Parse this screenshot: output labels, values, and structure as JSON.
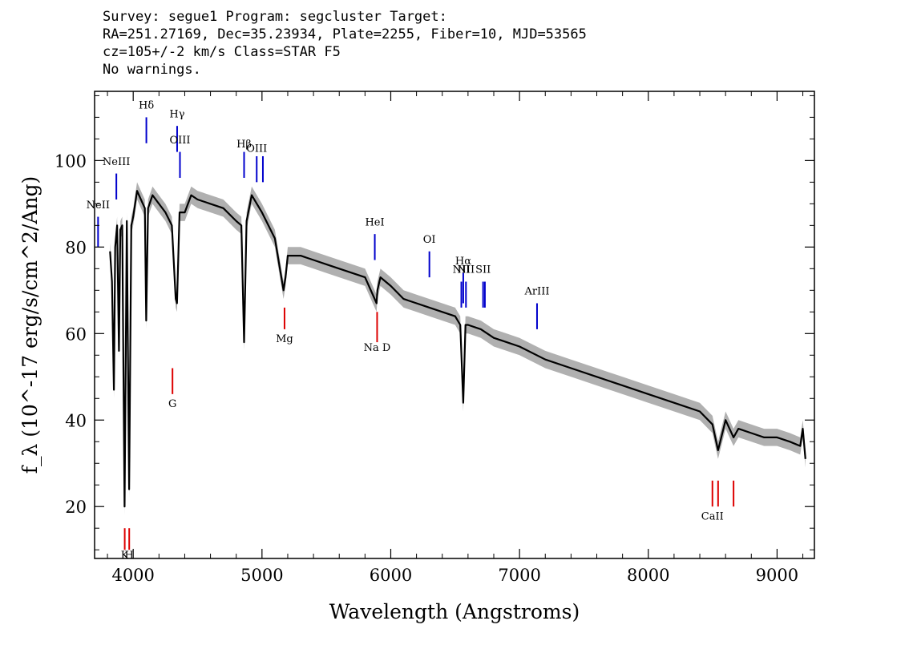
{
  "header": {
    "line1": "Survey: segue1 Program: segcluster Target:",
    "line2": "RA=251.27169, Dec=35.23934, Plate=2255, Fiber=10, MJD=53565",
    "line3": "cz=105+/-2 km/s Class=STAR F5",
    "line4": "No warnings."
  },
  "colors": {
    "emission": "#0000cc",
    "absorption": "#dd0000",
    "flux": "#000000",
    "error": "#b0b0b0"
  },
  "chart_data": {
    "type": "line",
    "xlabel": "Wavelength (Angstroms)",
    "ylabel": "f_λ (10^-17 erg/s/cm^2/Ang)",
    "xlim": [
      3700,
      9290
    ],
    "ylim": [
      8,
      116
    ],
    "xticks": [
      4000,
      5000,
      6000,
      7000,
      8000,
      9000
    ],
    "yticks": [
      20,
      40,
      60,
      80,
      100
    ],
    "series": [
      {
        "x": [
          3820,
          3835,
          3850,
          3860,
          3875,
          3889,
          3900,
          3915,
          3933,
          3950,
          3968,
          3985,
          4000,
          4030,
          4060,
          4090,
          4101,
          4115,
          4150,
          4200,
          4250,
          4300,
          4330,
          4340,
          4360,
          4400,
          4450,
          4500,
          4600,
          4700,
          4800,
          4840,
          4861,
          4880,
          4920,
          5000,
          5100,
          5167,
          5183,
          5200,
          5300,
          5400,
          5500,
          5600,
          5700,
          5800,
          5890,
          5896,
          5920,
          6000,
          6100,
          6200,
          6300,
          6400,
          6500,
          6540,
          6563,
          6580,
          6600,
          6700,
          6800,
          6900,
          7000,
          7200,
          7400,
          7600,
          7800,
          8000,
          8200,
          8400,
          8498,
          8542,
          8600,
          8662,
          8700,
          8800,
          8900,
          9000,
          9100,
          9180,
          9200,
          9220
        ],
        "y": [
          79,
          72,
          47,
          80,
          85,
          56,
          84,
          85,
          20,
          86,
          24,
          85,
          87,
          93,
          91,
          89,
          63,
          89,
          92,
          90,
          88,
          85,
          68,
          67,
          88,
          88,
          92,
          91,
          90,
          89,
          86,
          85,
          58,
          86,
          92,
          88,
          82,
          70,
          73,
          78,
          78,
          77,
          76,
          75,
          74,
          73,
          67,
          70,
          73,
          71,
          68,
          67,
          66,
          65,
          64,
          62,
          44,
          62,
          62,
          61,
          59,
          58,
          57,
          54,
          52,
          50,
          48,
          46,
          44,
          42,
          39,
          33,
          40,
          36,
          38,
          37,
          36,
          36,
          35,
          34,
          38,
          31
        ]
      }
    ],
    "line_markers": [
      {
        "label": "NeII",
        "type": "emission",
        "wavelength": 3727,
        "y_top": 87,
        "y_bottom": 80,
        "label_y": 89
      },
      {
        "label": "NeIII",
        "type": "emission",
        "wavelength": 3869,
        "y_top": 97,
        "y_bottom": 91,
        "label_y": 99
      },
      {
        "label": "Hδ",
        "type": "emission",
        "wavelength": 4102,
        "y_top": 110,
        "y_bottom": 104,
        "label_y": 112
      },
      {
        "label": "Hγ",
        "type": "emission",
        "wavelength": 4341,
        "y_top": 108,
        "y_bottom": 102,
        "label_y": 110
      },
      {
        "label": "OIII",
        "type": "emission",
        "wavelength": 4363,
        "y_top": 102,
        "y_bottom": 96,
        "label_y": 104
      },
      {
        "label": "Hβ",
        "type": "emission",
        "wavelength": 4861,
        "y_top": 102,
        "y_bottom": 96,
        "label_y": 103
      },
      {
        "label": "OIII",
        "type": "emission",
        "wavelength": 4959,
        "y_top": 101,
        "y_bottom": 95,
        "label_y": 102
      },
      {
        "label": "",
        "type": "emission",
        "wavelength": 5007,
        "y_top": 101,
        "y_bottom": 95,
        "label_y": 102
      },
      {
        "label": "HeI",
        "type": "emission",
        "wavelength": 5876,
        "y_top": 83,
        "y_bottom": 77,
        "label_y": 85
      },
      {
        "label": "OI",
        "type": "emission",
        "wavelength": 6300,
        "y_top": 79,
        "y_bottom": 73,
        "label_y": 81
      },
      {
        "label": "NII",
        "type": "emission",
        "wavelength": 6548,
        "y_top": 72,
        "y_bottom": 66,
        "label_y": 74
      },
      {
        "label": "Hα",
        "type": "emission",
        "wavelength": 6563,
        "y_top": 74,
        "y_bottom": 67,
        "label_y": 76
      },
      {
        "label": "NII",
        "type": "emission",
        "wavelength": 6584,
        "y_top": 72,
        "y_bottom": 66,
        "label_y": 74
      },
      {
        "label": "SII",
        "type": "emission",
        "wavelength": 6717,
        "y_top": 72,
        "y_bottom": 66,
        "label_y": 74
      },
      {
        "label": "",
        "type": "emission",
        "wavelength": 6731,
        "y_top": 72,
        "y_bottom": 66,
        "label_y": 74
      },
      {
        "label": "ArIII",
        "type": "emission",
        "wavelength": 7136,
        "y_top": 67,
        "y_bottom": 61,
        "label_y": 69
      },
      {
        "label": "K",
        "type": "absorption",
        "wavelength": 3934,
        "y_top": 15,
        "y_bottom": 10,
        "label_y": 8
      },
      {
        "label": "H",
        "type": "absorption",
        "wavelength": 3969,
        "y_top": 15,
        "y_bottom": 10,
        "label_y": 8
      },
      {
        "label": "G",
        "type": "absorption",
        "wavelength": 4305,
        "y_top": 52,
        "y_bottom": 46,
        "label_y": 43
      },
      {
        "label": "Mg",
        "type": "absorption",
        "wavelength": 5175,
        "y_top": 66,
        "y_bottom": 61,
        "label_y": 58
      },
      {
        "label": "Na D",
        "type": "absorption",
        "wavelength": 5894,
        "y_top": 65,
        "y_bottom": 58,
        "label_y": 56
      },
      {
        "label": "CaII",
        "type": "absorption",
        "wavelength": 8498,
        "y_top": 26,
        "y_bottom": 20,
        "label_y": 17
      },
      {
        "label": "",
        "type": "absorption",
        "wavelength": 8542,
        "y_top": 26,
        "y_bottom": 20,
        "label_y": 17
      },
      {
        "label": "",
        "type": "absorption",
        "wavelength": 8662,
        "y_top": 26,
        "y_bottom": 20,
        "label_y": 17
      }
    ]
  }
}
